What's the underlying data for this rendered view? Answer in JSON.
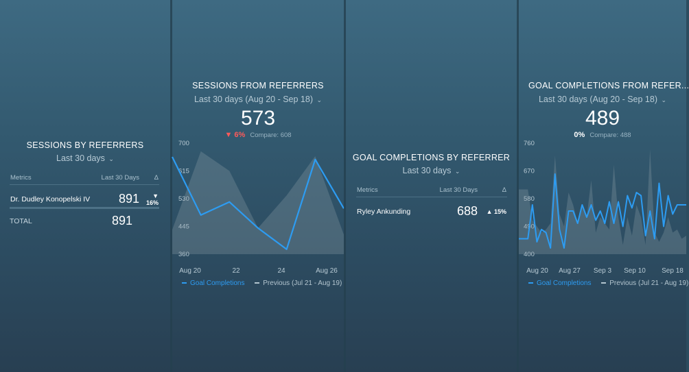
{
  "colors": {
    "accent_line": "#2d9cf2",
    "previous_area": "#8a9ba6",
    "negative": "#ff5a5a",
    "positive": "#58e08a"
  },
  "panel1": {
    "title": "SESSIONS BY REFERRERS",
    "range": "Last 30 days",
    "chevron_icon": "chevron-down-icon",
    "col_metrics": "Metrics",
    "col_period": "Last 30 Days",
    "col_delta": "Δ",
    "row_name": "Dr. Dudley Konopelski IV",
    "row_value": "891",
    "row_change": "▼ 16%",
    "total_label": "TOTAL",
    "total_value": "891"
  },
  "panel2": {
    "title": "SESSIONS FROM REFERRERS",
    "range": "Last 30 days (Aug 20 - Sep 18)",
    "value": "573",
    "change": "▼ 6%",
    "compare": "Compare: 608",
    "legend_current": "Goal Completions",
    "legend_previous": "Previous (Jul 21 - Aug 19)"
  },
  "panel3": {
    "title": "GOAL COMPLETIONS BY REFERRER",
    "range": "Last 30 days",
    "col_metrics": "Metrics",
    "col_period": "Last 30 Days",
    "col_delta": "Δ",
    "row_name": "Ryley Ankunding",
    "row_value": "688",
    "row_change": "▲ 15%"
  },
  "panel4": {
    "title": "GOAL COMPLETIONS FROM REFER...",
    "range": "Last 30 days (Aug 20 - Sep 18)",
    "value": "489",
    "change": "0%",
    "compare": "Compare: 488",
    "legend_current": "Goal Completions",
    "legend_previous": "Previous (Jul 21 - Aug 19)"
  },
  "chart_data": [
    {
      "type": "line",
      "ylim": [
        360,
        700
      ],
      "yticks": [
        "700",
        "615",
        "530",
        "445",
        "360"
      ],
      "x_labels": [
        "Aug 20",
        "22",
        "24",
        "Aug 26"
      ],
      "x": [
        "Aug 20",
        "Aug 21",
        "Aug 22",
        "Aug 23",
        "Aug 24",
        "Aug 25",
        "Aug 26"
      ],
      "series": [
        {
          "name": "Goal Completions",
          "values": [
            658,
            480,
            520,
            440,
            375,
            650,
            500
          ]
        },
        {
          "name": "Previous (Jul 21 - Aug 19)",
          "values": [
            435,
            675,
            615,
            440,
            540,
            660,
            420
          ]
        }
      ]
    },
    {
      "type": "line",
      "ylim": [
        400,
        760
      ],
      "yticks": [
        "760",
        "670",
        "580",
        "490",
        "400"
      ],
      "x_labels": [
        "Aug 20",
        "Aug 27",
        "Sep 3",
        "Sep 10",
        "Sep 18"
      ],
      "series": [
        {
          "name": "Goal Completions",
          "values": [
            450,
            450,
            450,
            560,
            440,
            480,
            470,
            420,
            660,
            480,
            420,
            540,
            540,
            500,
            560,
            520,
            560,
            510,
            540,
            500,
            570,
            500,
            570,
            490,
            590,
            550,
            600,
            590,
            460,
            540,
            450,
            630,
            490,
            590,
            530,
            560,
            560,
            560
          ]
        },
        {
          "name": "Previous (Jul 21 - Aug 19)",
          "values": [
            610,
            610,
            610,
            510,
            490,
            470,
            480,
            500,
            720,
            530,
            490,
            600,
            560,
            500,
            560,
            520,
            640,
            470,
            520,
            500,
            480,
            690,
            520,
            430,
            520,
            460,
            560,
            520,
            430,
            740,
            470,
            440,
            470,
            520,
            470,
            480,
            450,
            460
          ]
        }
      ]
    }
  ]
}
